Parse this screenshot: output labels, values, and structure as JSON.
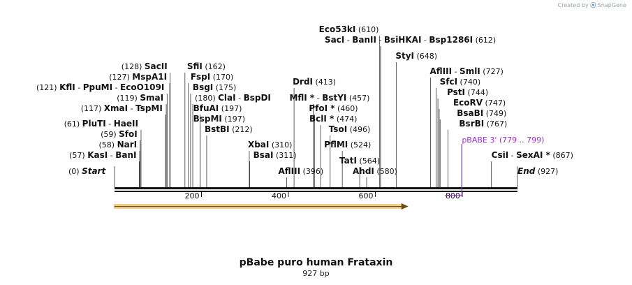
{
  "header": {
    "credit_prefix": "Created by",
    "credit_brand": "SnapGene"
  },
  "map": {
    "title": "pBabe puro human Frataxin",
    "length_label": "927 bp",
    "start_label": "Start",
    "start_pos": "(0)",
    "end_label": "End",
    "end_pos": "(927)"
  },
  "chart_data": {
    "type": "linear-plasmid-map",
    "length_bp": 927,
    "ticks": [
      200,
      400,
      600,
      800
    ],
    "feature": {
      "name": "pBABE 3'",
      "range": "(779 .. 799)",
      "start": 779,
      "end": 799,
      "color": "#9b30d0"
    },
    "orf": {
      "start": 0,
      "end": 676,
      "color": "#f3a935"
    },
    "sites": [
      {
        "names": [
          "KasI",
          "BanI"
        ],
        "pos": 57
      },
      {
        "names": [
          "NarI"
        ],
        "pos": 58
      },
      {
        "names": [
          "SfoI"
        ],
        "pos": 59
      },
      {
        "names": [
          "PluTI",
          "HaeII"
        ],
        "pos": 61
      },
      {
        "names": [
          "XmaI",
          "TspMI"
        ],
        "pos": 117
      },
      {
        "names": [
          "SmaI"
        ],
        "pos": 119
      },
      {
        "names": [
          "KflI",
          "PpuMI",
          "EcoO109I"
        ],
        "pos": 121
      },
      {
        "names": [
          "MspA1I"
        ],
        "pos": 127
      },
      {
        "names": [
          "SacII"
        ],
        "pos": 128
      },
      {
        "names": [
          "SfiI"
        ],
        "pos": 162
      },
      {
        "names": [
          "FspI"
        ],
        "pos": 170
      },
      {
        "names": [
          "BsgI"
        ],
        "pos": 175
      },
      {
        "names": [
          "ClaI",
          "BspDI"
        ],
        "pos": 180
      },
      {
        "names": [
          "BfuAI"
        ],
        "pos": 197
      },
      {
        "names": [
          "BspMI"
        ],
        "pos": 197
      },
      {
        "names": [
          "BstBI"
        ],
        "pos": 212
      },
      {
        "names": [
          "XbaI"
        ],
        "pos": 310
      },
      {
        "names": [
          "BsaI"
        ],
        "pos": 311
      },
      {
        "names": [
          "AflIII"
        ],
        "pos": 396
      },
      {
        "names": [
          "DrdI"
        ],
        "pos": 413
      },
      {
        "names": [
          "MflI *",
          "BstYI"
        ],
        "pos": 457
      },
      {
        "names": [
          "PfoI *"
        ],
        "pos": 460
      },
      {
        "names": [
          "BclI *"
        ],
        "pos": 474
      },
      {
        "names": [
          "TsoI"
        ],
        "pos": 496
      },
      {
        "names": [
          "PflMI"
        ],
        "pos": 524
      },
      {
        "names": [
          "TatI"
        ],
        "pos": 564
      },
      {
        "names": [
          "AhdI"
        ],
        "pos": 580
      },
      {
        "names": [
          "Eco53kI"
        ],
        "pos": 610
      },
      {
        "names": [
          "SacI",
          "BanII",
          "BsiHKAI",
          "Bsp1286I"
        ],
        "pos": 612
      },
      {
        "names": [
          "StyI"
        ],
        "pos": 648
      },
      {
        "names": [
          "AflIII",
          "SmlI"
        ],
        "pos": 727
      },
      {
        "names": [
          "SfcI"
        ],
        "pos": 740
      },
      {
        "names": [
          "PstI"
        ],
        "pos": 744
      },
      {
        "names": [
          "EcoRV"
        ],
        "pos": 747
      },
      {
        "names": [
          "BsaBI"
        ],
        "pos": 749
      },
      {
        "names": [
          "BsrBI"
        ],
        "pos": 767
      },
      {
        "names": [
          "CsiI",
          "SexAI *"
        ],
        "pos": 867
      }
    ]
  }
}
